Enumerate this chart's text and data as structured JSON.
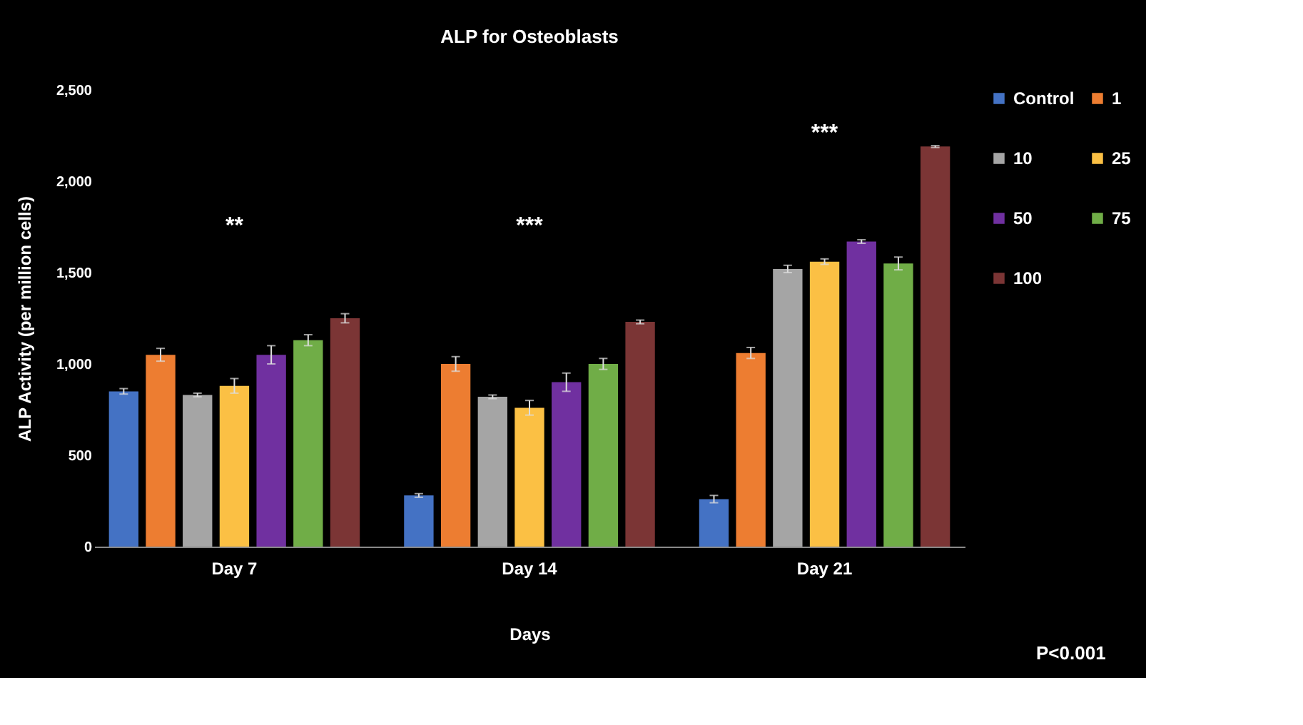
{
  "chart_data": {
    "type": "bar",
    "title": "ALP for Osteoblasts",
    "xlabel": "Days",
    "ylabel": "ALP Activity (per million cells)",
    "categories": [
      "Day 7",
      "Day 14",
      "Day 21"
    ],
    "series": [
      {
        "name": "Control",
        "color": "#4472c4",
        "values": [
          850,
          280,
          260
        ],
        "errors": [
          15,
          10,
          20
        ]
      },
      {
        "name": "1",
        "color": "#ed7d31",
        "values": [
          1050,
          1000,
          1060
        ],
        "errors": [
          35,
          40,
          30
        ]
      },
      {
        "name": "10",
        "color": "#a5a5a5",
        "values": [
          830,
          820,
          1520
        ],
        "errors": [
          10,
          10,
          20
        ]
      },
      {
        "name": "25",
        "color": "#fbc044",
        "values": [
          880,
          760,
          1560
        ],
        "errors": [
          40,
          40,
          15
        ]
      },
      {
        "name": "50",
        "color": "#7030a0",
        "values": [
          1050,
          900,
          1670
        ],
        "errors": [
          50,
          50,
          10
        ]
      },
      {
        "name": "75",
        "color": "#70ad47",
        "values": [
          1130,
          1000,
          1550
        ],
        "errors": [
          30,
          30,
          35
        ]
      },
      {
        "name": "100",
        "color": "#7b3535",
        "values": [
          1250,
          1230,
          2190
        ],
        "errors": [
          25,
          10,
          5
        ]
      }
    ],
    "ylim": [
      0,
      2500
    ],
    "yticks": [
      0,
      500,
      {
        "value": 1000,
        "label": "1,000"
      },
      {
        "value": 1500,
        "label": "1,500"
      },
      {
        "value": 2000,
        "label": "2,000"
      },
      {
        "value": 2500,
        "label": "2,500"
      }
    ],
    "grid": false,
    "legend": "right",
    "annotations": [
      "**",
      "***",
      "***",
      "P<0.001"
    ]
  }
}
